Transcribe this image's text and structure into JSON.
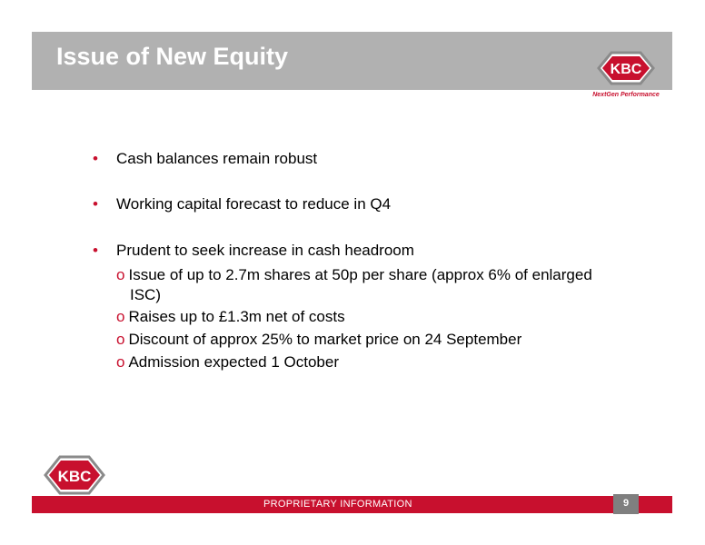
{
  "slide": {
    "title": "Issue of New Equity",
    "page_number": "9"
  },
  "logo": {
    "text": "KBC",
    "tagline": "NextGen Performance",
    "colors": {
      "red": "#c8102e",
      "grey": "#8a8a8a"
    }
  },
  "bullets": [
    {
      "text": "Cash balances remain robust"
    },
    {
      "text": "Working capital forecast to reduce in Q4"
    },
    {
      "text": "Prudent to seek increase in cash headroom"
    }
  ],
  "sub_bullets": [
    {
      "line1": "Issue of up to 2.7m shares at 50p per share (approx 6% of enlarged",
      "line2": "ISC)"
    },
    {
      "text": "Raises up to £1.3m  net of costs"
    },
    {
      "text": "Discount of approx 25% to market price on 24 September"
    },
    {
      "text": "Admission expected 1 October"
    }
  ],
  "footer": {
    "label": "PROPRIETARY INFORMATION"
  },
  "colors": {
    "title_bar": "#b1b1b1",
    "accent": "#c8102e",
    "page_box": "#7f7f7f"
  }
}
